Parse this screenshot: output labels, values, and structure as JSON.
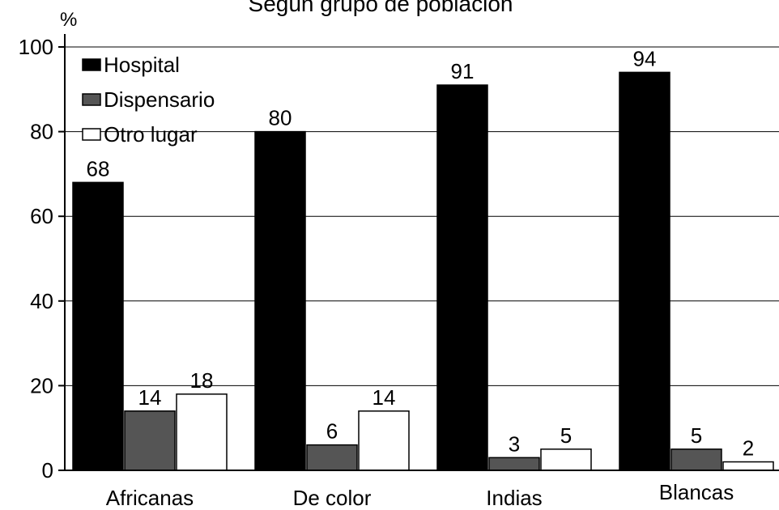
{
  "chart_data": {
    "type": "bar",
    "title": "Según grupo de población",
    "ylabel": "%",
    "xlabel": "",
    "ylim": [
      0,
      100
    ],
    "yticks": [
      0,
      20,
      40,
      60,
      80,
      100
    ],
    "grid": true,
    "legend_position": "top-left",
    "categories": [
      "Africanas",
      "De color",
      "Indias",
      "Blancas"
    ],
    "series": [
      {
        "name": "Hospital",
        "color": "#000000",
        "values": [
          68,
          80,
          91,
          94
        ]
      },
      {
        "name": "Dispensario",
        "color": "#555555",
        "values": [
          14,
          6,
          3,
          5
        ]
      },
      {
        "name": "Otro lugar",
        "color": "#ffffff",
        "values": [
          18,
          14,
          5,
          2
        ]
      }
    ]
  }
}
